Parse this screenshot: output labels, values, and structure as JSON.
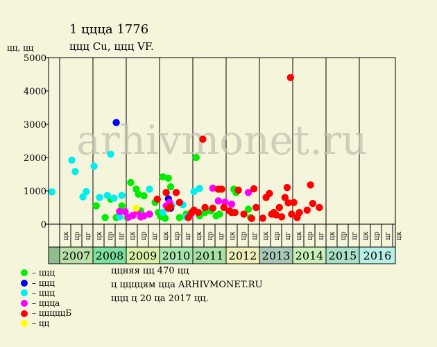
{
  "chart_data": {
    "type": "scatter",
    "title": "1 ццца 1776",
    "subtitle": "ццц Cu, ццц VF.",
    "ylabel": "цц, цц",
    "ylim": [
      0,
      5000
    ],
    "yticks": [
      0,
      1000,
      2000,
      3000,
      4000,
      5000
    ],
    "watermark": "arhivmonet.ru",
    "years": [
      "",
      "2007",
      "2008",
      "2009",
      "2010",
      "2011",
      "2012",
      "2013",
      "2014",
      "2015",
      "2016"
    ],
    "year_colors": [
      "#8fbc8f",
      "#b8e0a8",
      "#7ce0a0",
      "#d8f0a8",
      "#a8e8b0",
      "#a8e0a8",
      "#f0f0b8",
      "#a8c8b8",
      "#c8f0b8",
      "#a8e0c8",
      "#b8f0e8"
    ],
    "month_labels": [
      "цк",
      "цр",
      "цг",
      "цк",
      "цр",
      "цг",
      "цк",
      "цр",
      "цг",
      "цк",
      "цр",
      "цг",
      "цк",
      "цр",
      "цг",
      "цк",
      "цр",
      "цг",
      "цк",
      "цр",
      "цг",
      "цк",
      "цр",
      "цг",
      "цк",
      "цр",
      "цг",
      "цк",
      "цр",
      "цг",
      "цк"
    ],
    "series": [
      {
        "name": "ццц",
        "color": "#00ee00",
        "points": [
          [
            4.3,
            550
          ],
          [
            5.1,
            200
          ],
          [
            5.6,
            750
          ],
          [
            6.1,
            200
          ],
          [
            6.6,
            550
          ],
          [
            7.1,
            200
          ],
          [
            7.4,
            1250
          ],
          [
            7.9,
            1050
          ],
          [
            8.1,
            900
          ],
          [
            8.3,
            400
          ],
          [
            8.6,
            850
          ],
          [
            9.1,
            300
          ],
          [
            9.6,
            650
          ],
          [
            9.9,
            350
          ],
          [
            10.1,
            230
          ],
          [
            10.3,
            1420
          ],
          [
            10.5,
            180
          ],
          [
            10.8,
            1380
          ],
          [
            11.0,
            1120
          ],
          [
            11.8,
            200
          ],
          [
            12.4,
            300
          ],
          [
            13.3,
            2000
          ],
          [
            13.6,
            250
          ],
          [
            14.1,
            350
          ],
          [
            14.6,
            400
          ],
          [
            15.1,
            250
          ],
          [
            15.4,
            300
          ],
          [
            16.7,
            1050
          ],
          [
            16.9,
            950
          ],
          [
            18.0,
            450
          ],
          [
            18.2,
            200
          ]
        ]
      },
      {
        "name": "ццц",
        "color": "#0000ee",
        "points": [
          [
            6.1,
            3050
          ],
          [
            10.8,
            760
          ],
          [
            11.0,
            480
          ]
        ]
      },
      {
        "name": "ццц",
        "color": "#00eeee",
        "points": [
          [
            0.3,
            970
          ],
          [
            2.1,
            1920
          ],
          [
            2.4,
            1580
          ],
          [
            3.1,
            820
          ],
          [
            3.4,
            980
          ],
          [
            4.1,
            1740
          ],
          [
            4.6,
            800
          ],
          [
            5.3,
            860
          ],
          [
            5.6,
            2100
          ],
          [
            5.9,
            780
          ],
          [
            6.4,
            220
          ],
          [
            6.6,
            860
          ],
          [
            9.1,
            1050
          ],
          [
            10.3,
            350
          ],
          [
            11.1,
            570
          ],
          [
            12.1,
            580
          ],
          [
            12.4,
            220
          ],
          [
            13.1,
            980
          ],
          [
            13.6,
            1070
          ]
        ]
      },
      {
        "name": "цццa",
        "color": "#ff00ff",
        "points": [
          [
            6.4,
            380
          ],
          [
            6.9,
            370
          ],
          [
            7.2,
            210
          ],
          [
            7.6,
            260
          ],
          [
            8.0,
            380
          ],
          [
            8.3,
            220
          ],
          [
            8.6,
            250
          ],
          [
            9.1,
            300
          ],
          [
            10.6,
            550
          ],
          [
            10.9,
            650
          ],
          [
            12.8,
            280
          ],
          [
            14.8,
            1080
          ],
          [
            15.3,
            700
          ],
          [
            15.9,
            660
          ],
          [
            16.5,
            600
          ],
          [
            18.0,
            950
          ]
        ]
      },
      {
        "name": "цццццБ",
        "color": "#ff0000",
        "points": [
          [
            9.8,
            750
          ],
          [
            10.6,
            950
          ],
          [
            10.8,
            480
          ],
          [
            11.0,
            520
          ],
          [
            11.5,
            950
          ],
          [
            11.8,
            650
          ],
          [
            12.6,
            200
          ],
          [
            12.9,
            350
          ],
          [
            13.1,
            420
          ],
          [
            13.5,
            350
          ],
          [
            13.9,
            2550
          ],
          [
            14.1,
            500
          ],
          [
            14.8,
            480
          ],
          [
            15.3,
            1050
          ],
          [
            15.6,
            1050
          ],
          [
            15.8,
            500
          ],
          [
            16.3,
            400
          ],
          [
            16.5,
            350
          ],
          [
            16.8,
            350
          ],
          [
            17.1,
            1020
          ],
          [
            17.6,
            300
          ],
          [
            18.3,
            170
          ],
          [
            18.5,
            1060
          ],
          [
            18.7,
            500
          ],
          [
            19.3,
            180
          ],
          [
            19.6,
            800
          ],
          [
            19.9,
            920
          ],
          [
            20.1,
            300
          ],
          [
            20.3,
            350
          ],
          [
            20.5,
            280
          ],
          [
            20.8,
            500
          ],
          [
            21.0,
            220
          ],
          [
            21.3,
            800
          ],
          [
            21.5,
            1100
          ],
          [
            21.6,
            640
          ],
          [
            21.8,
            4400
          ],
          [
            21.9,
            300
          ],
          [
            22.1,
            650
          ],
          [
            22.4,
            200
          ],
          [
            22.6,
            350
          ],
          [
            23.3,
            420
          ],
          [
            23.6,
            1180
          ],
          [
            23.8,
            620
          ],
          [
            24.4,
            500
          ]
        ]
      },
      {
        "name": "цц",
        "color": "#ffff00",
        "points": [
          [
            7.9,
            480
          ]
        ]
      }
    ]
  },
  "legend": [
    {
      "color": "#00ee00",
      "label": "– ццц"
    },
    {
      "color": "#0000ee",
      "label": "– ццц"
    },
    {
      "color": "#00eeee",
      "label": "– ццц"
    },
    {
      "color": "#ff00ff",
      "label": "– цццa"
    },
    {
      "color": "#ff0000",
      "label": "– цццццБ"
    },
    {
      "color": "#ffff00",
      "label": "– цц"
    }
  ],
  "notes": {
    "line1": "ццняя цц 470 цц",
    "line2": "ц ццццям ццa ARHIVMONET.RU",
    "line3": "ццц ц 20 цa 2017 цц."
  }
}
